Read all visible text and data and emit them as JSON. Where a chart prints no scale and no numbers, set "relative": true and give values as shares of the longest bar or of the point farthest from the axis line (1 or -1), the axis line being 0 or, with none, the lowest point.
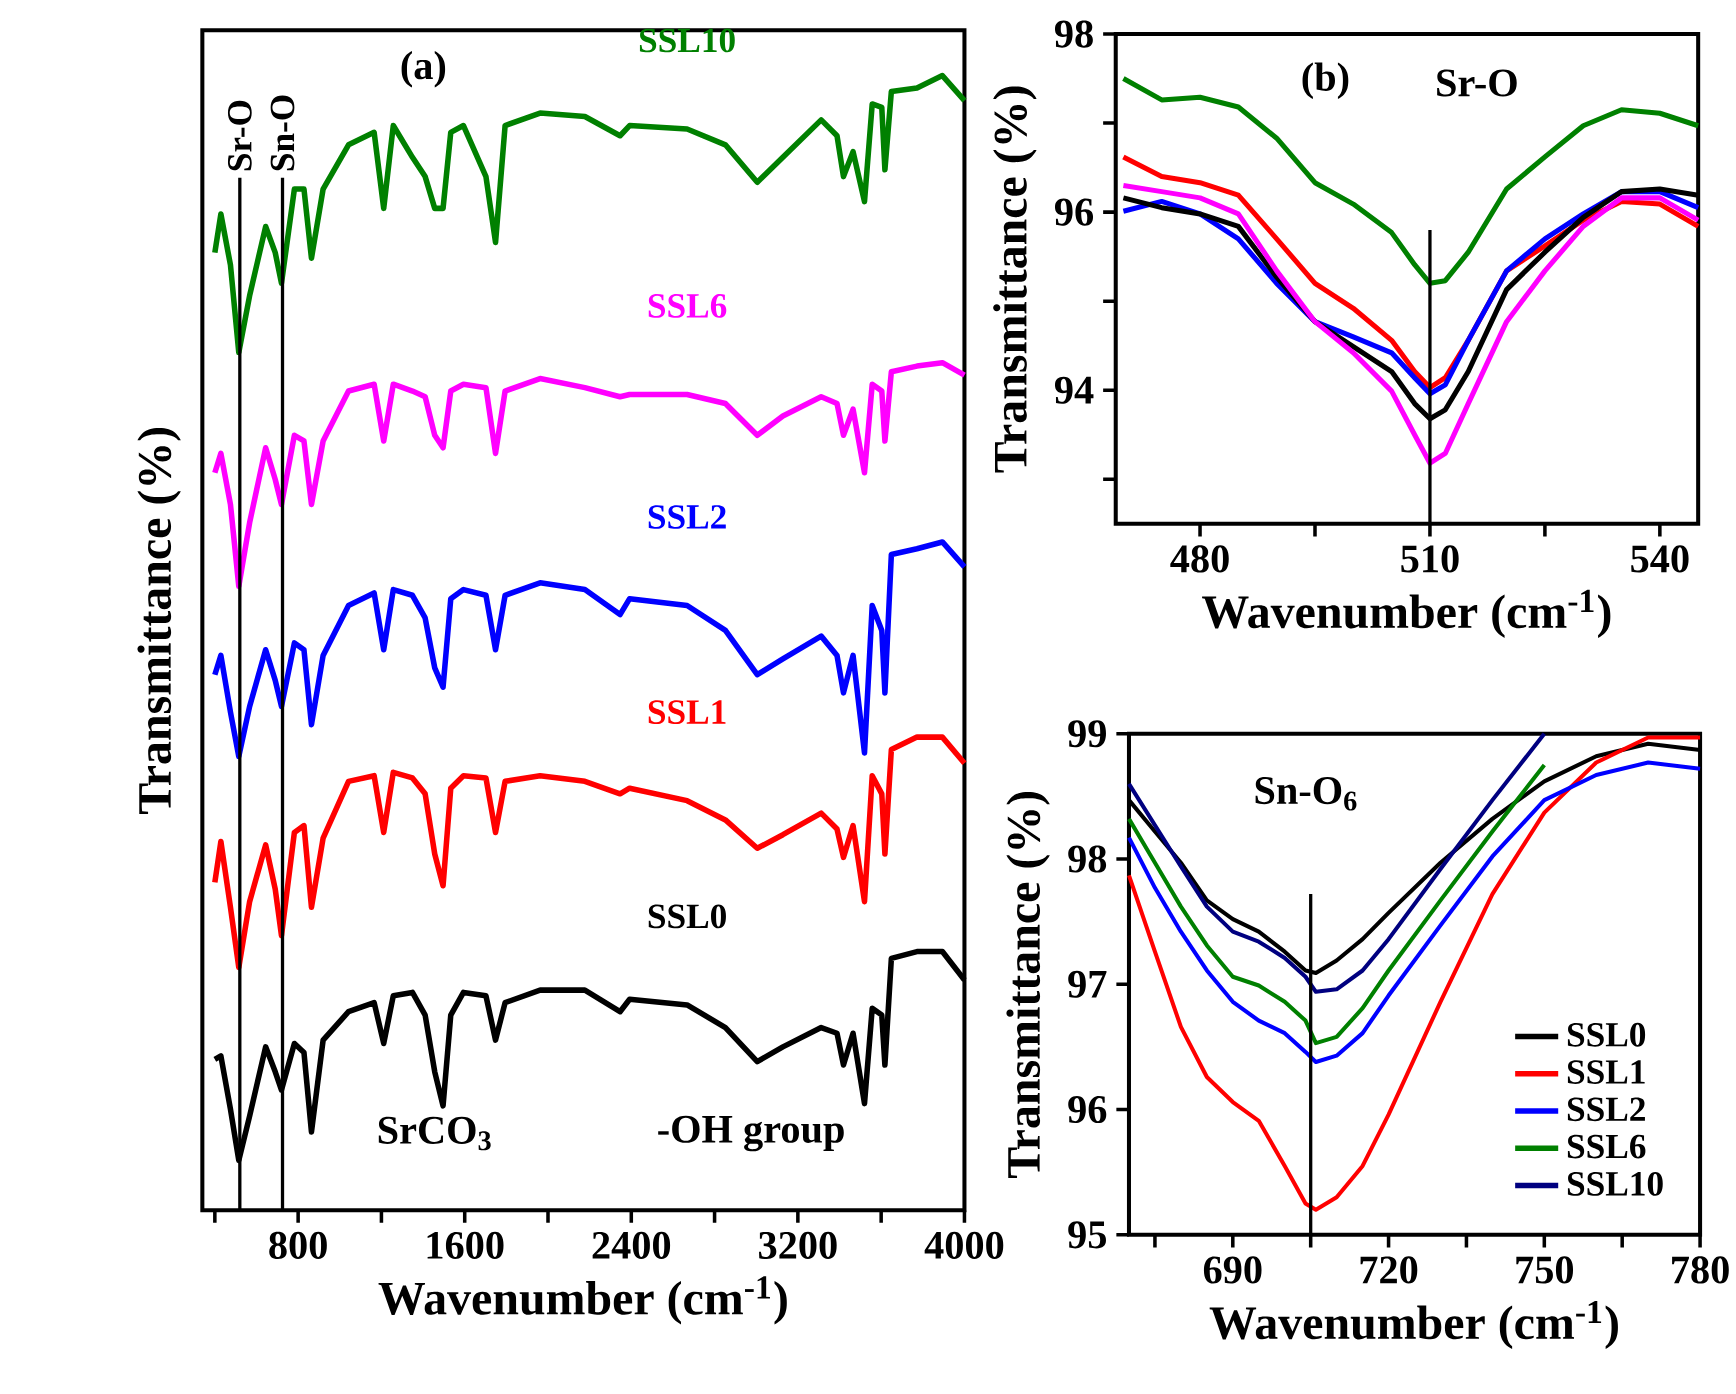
{
  "chart_data": [
    {
      "type": "line",
      "title": "(a)",
      "xlabel": "Wavenumber (cm$^{-1}$)",
      "ylabel": "Transmittance (%)",
      "relative": true,
      "tick_labels": "x",
      "legend": false,
      "xlim": [
        340,
        4000
      ],
      "xticks": [
        {
          "value": 400,
          "label": null
        },
        800,
        {
          "value": 1200,
          "label": null
        },
        1600,
        {
          "value": 2000,
          "label": null
        },
        2400,
        {
          "value": 2800,
          "label": null
        },
        3200,
        {
          "value": 3600,
          "label": null
        },
        4000
      ],
      "x": [
        400,
        429,
        475,
        515,
        567,
        644,
        690,
        720,
        782,
        828,
        864,
        920,
        1042,
        1165,
        1211,
        1257,
        1349,
        1410,
        1456,
        1496,
        1533,
        1594,
        1702,
        1748,
        1794,
        1962,
        2177,
        2346,
        2392,
        2668,
        2852,
        3005,
        3128,
        3312,
        3388,
        3419,
        3465,
        3520,
        3557,
        3603,
        3618,
        3649,
        3772,
        3894,
        4000
      ],
      "ref_lines": [
        {
          "axis": "x",
          "value": 520,
          "label": "Sr-O"
        },
        {
          "axis": "x",
          "value": 725,
          "label": "Sn-O"
        }
      ],
      "annotations": [
        "SrCO$_{3}$",
        "-OH group"
      ],
      "series": [
        {
          "name": "SSL10",
          "color": "#008000",
          "values": [
            0.844,
            0.878,
            0.833,
            0.756,
            0.806,
            0.867,
            0.844,
            0.817,
            0.9,
            0.9,
            0.839,
            0.9,
            0.939,
            0.95,
            0.883,
            0.956,
            0.928,
            0.911,
            0.883,
            0.883,
            0.95,
            0.956,
            0.911,
            0.853,
            0.956,
            0.967,
            0.964,
            0.947,
            0.956,
            0.953,
            0.939,
            0.906,
            0.928,
            0.961,
            0.947,
            0.911,
            0.933,
            0.889,
            0.975,
            0.972,
            0.917,
            0.986,
            0.989,
            1.0,
            0.978
          ]
        },
        {
          "name": "SSL6",
          "color": "#ff00ff",
          "values": [
            0.65,
            0.667,
            0.622,
            0.55,
            0.606,
            0.672,
            0.644,
            0.622,
            0.683,
            0.678,
            0.622,
            0.678,
            0.722,
            0.728,
            0.678,
            0.728,
            0.722,
            0.717,
            0.683,
            0.672,
            0.722,
            0.728,
            0.725,
            0.667,
            0.722,
            0.733,
            0.725,
            0.717,
            0.719,
            0.719,
            0.711,
            0.683,
            0.7,
            0.717,
            0.711,
            0.683,
            0.706,
            0.65,
            0.728,
            0.722,
            0.678,
            0.739,
            0.744,
            0.747,
            0.736
          ]
        },
        {
          "name": "SSL2",
          "color": "#0000ff",
          "values": [
            0.472,
            0.489,
            0.439,
            0.4,
            0.444,
            0.494,
            0.467,
            0.444,
            0.5,
            0.494,
            0.428,
            0.489,
            0.533,
            0.544,
            0.494,
            0.547,
            0.542,
            0.522,
            0.478,
            0.461,
            0.539,
            0.547,
            0.542,
            0.494,
            0.542,
            0.553,
            0.547,
            0.525,
            0.539,
            0.533,
            0.511,
            0.472,
            0.486,
            0.506,
            0.489,
            0.456,
            0.489,
            0.403,
            0.533,
            0.511,
            0.456,
            0.578,
            0.583,
            0.589,
            0.567
          ]
        },
        {
          "name": "SSL1",
          "color": "#ff0000",
          "values": [
            0.289,
            0.325,
            0.267,
            0.214,
            0.272,
            0.322,
            0.283,
            0.242,
            0.333,
            0.339,
            0.267,
            0.328,
            0.378,
            0.383,
            0.333,
            0.386,
            0.381,
            0.367,
            0.314,
            0.286,
            0.372,
            0.383,
            0.381,
            0.333,
            0.378,
            0.383,
            0.378,
            0.367,
            0.372,
            0.361,
            0.344,
            0.319,
            0.331,
            0.35,
            0.336,
            0.311,
            0.339,
            0.272,
            0.383,
            0.367,
            0.314,
            0.406,
            0.417,
            0.417,
            0.394
          ]
        },
        {
          "name": "SSL0",
          "color": "#000000",
          "values": [
            0.133,
            0.136,
            0.089,
            0.044,
            0.083,
            0.144,
            0.122,
            0.106,
            0.147,
            0.139,
            0.069,
            0.15,
            0.175,
            0.183,
            0.147,
            0.189,
            0.192,
            0.172,
            0.122,
            0.092,
            0.172,
            0.192,
            0.189,
            0.15,
            0.183,
            0.194,
            0.194,
            0.175,
            0.186,
            0.181,
            0.161,
            0.131,
            0.144,
            0.161,
            0.156,
            0.128,
            0.156,
            0.094,
            0.178,
            0.172,
            0.128,
            0.222,
            0.228,
            0.228,
            0.203
          ]
        }
      ]
    },
    {
      "type": "line",
      "title": "(b)",
      "xlabel": "Wavenumber (cm$^{-1}$)",
      "ylabel": "Transmittance (%)",
      "legend": false,
      "xlim": [
        469,
        545
      ],
      "xticks": [
        480,
        {
          "value": 495,
          "label": null
        },
        510,
        {
          "value": 525,
          "label": null
        },
        540
      ],
      "ylim": [
        92.5,
        98
      ],
      "yticks": [
        {
          "value": 93,
          "label": null
        },
        94,
        {
          "value": 95,
          "label": null
        },
        96,
        {
          "value": 97,
          "label": null
        },
        98
      ],
      "x": [
        470,
        475,
        480,
        485,
        490,
        495,
        500,
        505,
        508,
        510,
        512,
        515,
        520,
        525,
        530,
        535,
        540,
        545
      ],
      "ref_lines": [
        {
          "axis": "x",
          "value": 510,
          "label": "Sr-O"
        }
      ],
      "series": [
        {
          "color": "#008000",
          "values": [
            97.5,
            97.26,
            97.29,
            97.18,
            96.83,
            96.33,
            96.09,
            95.77,
            95.41,
            95.2,
            95.23,
            95.55,
            96.26,
            96.62,
            96.97,
            97.15,
            97.11,
            96.97
          ]
        },
        {
          "color": "#ff0000",
          "values": [
            96.62,
            96.4,
            96.33,
            96.19,
            95.7,
            95.2,
            94.92,
            94.56,
            94.21,
            94.03,
            94.14,
            94.56,
            95.34,
            95.62,
            95.91,
            96.12,
            96.09,
            95.84
          ]
        },
        {
          "color": "#0000ff",
          "values": [
            96.01,
            96.12,
            95.98,
            95.7,
            95.2,
            94.77,
            94.6,
            94.42,
            94.14,
            93.96,
            94.06,
            94.56,
            95.34,
            95.7,
            95.98,
            96.23,
            96.23,
            96.05
          ]
        },
        {
          "color": "#000000",
          "values": [
            96.16,
            96.05,
            95.98,
            95.84,
            95.27,
            94.77,
            94.49,
            94.21,
            93.85,
            93.68,
            93.78,
            94.21,
            95.13,
            95.55,
            95.94,
            96.23,
            96.26,
            96.19
          ]
        },
        {
          "color": "#ff00ff",
          "values": [
            96.3,
            96.23,
            96.16,
            95.98,
            95.34,
            94.77,
            94.42,
            93.99,
            93.5,
            93.18,
            93.29,
            93.85,
            94.77,
            95.34,
            95.84,
            96.16,
            96.16,
            95.91
          ]
        }
      ]
    },
    {
      "type": "line",
      "xlabel": "Wavenumber (cm$^{-1}$)",
      "ylabel": "Transmittance (%)",
      "legend": "bottom right",
      "xlim": [
        670,
        780
      ],
      "xticks": [
        {
          "value": 675,
          "label": null
        },
        690,
        {
          "value": 705,
          "label": null
        },
        720,
        {
          "value": 735,
          "label": null
        },
        750,
        {
          "value": 765,
          "label": null
        },
        780
      ],
      "ylim": [
        95,
        99
      ],
      "yticks": [
        95,
        96,
        97,
        98,
        99
      ],
      "x": [
        670,
        675,
        680,
        685,
        690,
        695,
        700,
        704,
        706,
        710,
        715,
        720,
        730,
        740,
        750,
        760,
        770,
        780
      ],
      "ref_lines": [
        {
          "axis": "x",
          "value": 705,
          "label": "Sn-O$_{6}$"
        }
      ],
      "series": [
        {
          "name": "SSL0",
          "color": "#000000",
          "values": [
            98.47,
            98.22,
            97.97,
            97.67,
            97.52,
            97.42,
            97.26,
            97.11,
            97.09,
            97.19,
            97.36,
            97.57,
            97.97,
            98.32,
            98.62,
            98.82,
            98.92,
            98.87
          ]
        },
        {
          "name": "SSL1",
          "color": "#ff0000",
          "values": [
            97.87,
            97.26,
            96.66,
            96.26,
            96.06,
            95.91,
            95.55,
            95.25,
            95.2,
            95.3,
            95.55,
            95.96,
            96.86,
            97.72,
            98.37,
            98.77,
            98.97,
            98.97
          ]
        },
        {
          "name": "SSL2",
          "color": "#0000ff",
          "values": [
            98.17,
            97.77,
            97.42,
            97.11,
            96.86,
            96.71,
            96.61,
            96.46,
            96.38,
            96.43,
            96.61,
            96.91,
            97.47,
            98.02,
            98.47,
            98.67,
            98.77,
            98.72
          ]
        },
        {
          "name": "SSL6",
          "color": "#008000",
          "values": [
            98.32,
            97.97,
            97.62,
            97.31,
            97.06,
            96.99,
            96.86,
            96.71,
            96.53,
            96.58,
            96.81,
            97.11,
            97.67,
            98.22,
            98.75,
            null,
            null,
            null
          ]
        },
        {
          "name": "SSL10",
          "color": "#000080",
          "values": [
            98.6,
            98.27,
            97.94,
            97.62,
            97.42,
            97.34,
            97.21,
            97.06,
            96.94,
            96.96,
            97.11,
            97.36,
            97.92,
            98.47,
            99.0,
            null,
            null,
            null
          ]
        }
      ]
    }
  ]
}
